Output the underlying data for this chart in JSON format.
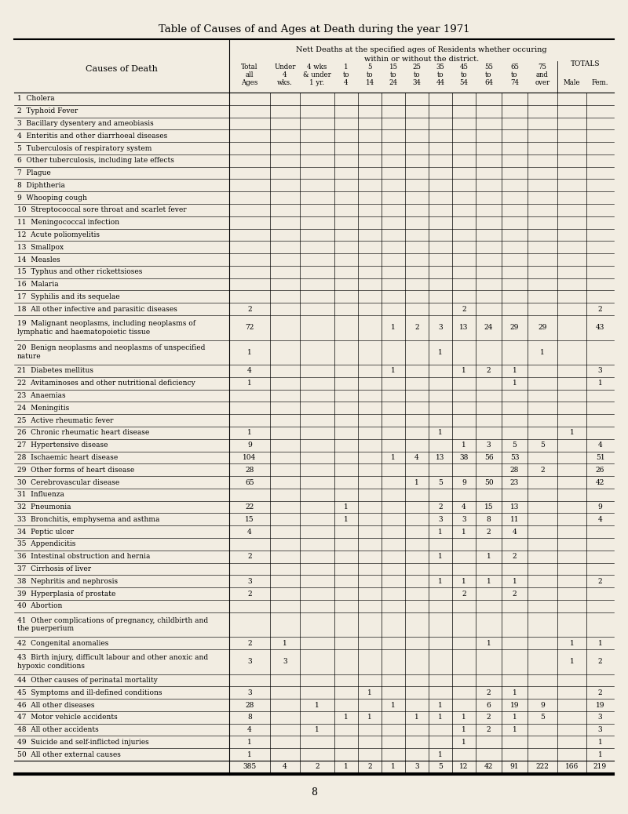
{
  "title": "Table of Causes of and Ages at Death during the year 1971",
  "bg_color": "#f2ede2",
  "causes": [
    [
      "1",
      "Cholera"
    ],
    [
      "2",
      "Typhoid Fever"
    ],
    [
      "3",
      "Bacillary dysentery and ameobiasis"
    ],
    [
      "4",
      "Enteritis and other diarrhoeal diseases"
    ],
    [
      "5",
      "Tuberculosis of respiratory system"
    ],
    [
      "6",
      "Other tuberculosis, including late effects"
    ],
    [
      "7",
      "Plague"
    ],
    [
      "8",
      "Diphtheria"
    ],
    [
      "9",
      "Whooping cough"
    ],
    [
      "10",
      "Streptococcal sore throat and scarlet fever"
    ],
    [
      "11",
      "Meningococcal infection"
    ],
    [
      "12",
      "Acute poliomyelitis"
    ],
    [
      "13",
      "Smallpox"
    ],
    [
      "14",
      "Measles"
    ],
    [
      "15",
      "Typhus and other rickettsioses"
    ],
    [
      "16",
      "Malaria"
    ],
    [
      "17",
      "Syphilis and its sequelae"
    ],
    [
      "18",
      "All other infective and parasitic diseases"
    ],
    [
      "19",
      "Malignant neoplasms, including neoplasms of\nlymphatic and haematopoietic tissue"
    ],
    [
      "20",
      "Benign neoplasms and neoplasms of unspecified\nnature"
    ],
    [
      "21",
      "Diabetes mellitus"
    ],
    [
      "22",
      "Avitaminoses and other nutritional deficiency"
    ],
    [
      "23",
      "Anaemias"
    ],
    [
      "24",
      "Meningitis"
    ],
    [
      "25",
      "Active rheumatic fever"
    ],
    [
      "26",
      "Chronic rheumatic heart disease"
    ],
    [
      "27",
      "Hypertensive disease"
    ],
    [
      "28",
      "Ischaemic heart disease"
    ],
    [
      "29",
      "Other forms of heart disease"
    ],
    [
      "30",
      "Cerebrovascular disease"
    ],
    [
      "31",
      "Influenza"
    ],
    [
      "32",
      "Pneumonia"
    ],
    [
      "33",
      "Bronchitis, emphysema and asthma"
    ],
    [
      "34",
      "Peptic ulcer"
    ],
    [
      "35",
      "Appendicitis"
    ],
    [
      "36",
      "Intestinal obstruction and hernia"
    ],
    [
      "37",
      "Cirrhosis of liver"
    ],
    [
      "38",
      "Nephritis and nephrosis"
    ],
    [
      "39",
      "Hyperplasia of prostate"
    ],
    [
      "40",
      "Abortion"
    ],
    [
      "41",
      "Other complications of pregnancy, childbirth and\nthe puerperium"
    ],
    [
      "42",
      "Congenital anomalies"
    ],
    [
      "43",
      "Birth injury, difficult labour and other anoxic and\nhypoxic conditions"
    ],
    [
      "44",
      "Other causes of perinatal mortality"
    ],
    [
      "45",
      "Symptoms and ill-defined conditions"
    ],
    [
      "46",
      "All other diseases"
    ],
    [
      "47",
      "Motor vehicle accidents"
    ],
    [
      "48",
      "All other accidents"
    ],
    [
      "49",
      "Suicide and self-inflicted injuries"
    ],
    [
      "50",
      "All other external causes"
    ]
  ],
  "data": [
    [
      "",
      "",
      "",
      "",
      "",
      "",
      "",
      "",
      "",
      "",
      "",
      "",
      "",
      ""
    ],
    [
      "",
      "",
      "",
      "",
      "",
      "",
      "",
      "",
      "",
      "",
      "",
      "",
      "",
      ""
    ],
    [
      "",
      "",
      "",
      "",
      "",
      "",
      "",
      "",
      "",
      "",
      "",
      "",
      "",
      ""
    ],
    [
      "",
      "",
      "",
      "",
      "",
      "",
      "",
      "",
      "",
      "",
      "",
      "",
      "",
      ""
    ],
    [
      "",
      "",
      "",
      "",
      "",
      "",
      "",
      "",
      "",
      "",
      "",
      "",
      "",
      ""
    ],
    [
      "",
      "",
      "",
      "",
      "",
      "",
      "",
      "",
      "",
      "",
      "",
      "",
      "",
      ""
    ],
    [
      "",
      "",
      "",
      "",
      "",
      "",
      "",
      "",
      "",
      "",
      "",
      "",
      "",
      ""
    ],
    [
      "",
      "",
      "",
      "",
      "",
      "",
      "",
      "",
      "",
      "",
      "",
      "",
      "",
      ""
    ],
    [
      "",
      "",
      "",
      "",
      "",
      "",
      "",
      "",
      "",
      "",
      "",
      "",
      "",
      ""
    ],
    [
      "",
      "",
      "",
      "",
      "",
      "",
      "",
      "",
      "",
      "",
      "",
      "",
      "",
      ""
    ],
    [
      "",
      "",
      "",
      "",
      "",
      "",
      "",
      "",
      "",
      "",
      "",
      "",
      "",
      ""
    ],
    [
      "",
      "",
      "",
      "",
      "",
      "",
      "",
      "",
      "",
      "",
      "",
      "",
      "",
      ""
    ],
    [
      "",
      "",
      "",
      "",
      "",
      "",
      "",
      "",
      "",
      "",
      "",
      "",
      "",
      ""
    ],
    [
      "",
      "",
      "",
      "",
      "",
      "",
      "",
      "",
      "",
      "",
      "",
      "",
      "",
      ""
    ],
    [
      "",
      "",
      "",
      "",
      "",
      "",
      "",
      "",
      "",
      "",
      "",
      "",
      "",
      ""
    ],
    [
      "",
      "",
      "",
      "",
      "",
      "",
      "",
      "",
      "",
      "",
      "",
      "",
      "",
      ""
    ],
    [
      "",
      "",
      "",
      "",
      "",
      "",
      "",
      "",
      "",
      "",
      "",
      "",
      "",
      ""
    ],
    [
      "2",
      "",
      "",
      "",
      "",
      "",
      "",
      "",
      "2",
      "",
      "",
      "",
      "",
      "2"
    ],
    [
      "72",
      "",
      "",
      "",
      "",
      "1",
      "2",
      "3",
      "13",
      "24",
      "29",
      "29",
      "",
      "43"
    ],
    [
      "1",
      "",
      "",
      "",
      "",
      "",
      "",
      "1",
      "",
      "",
      "",
      "1",
      "",
      ""
    ],
    [
      "4",
      "",
      "",
      "",
      "",
      "1",
      "",
      "",
      "1",
      "2",
      "1",
      "",
      "",
      "3"
    ],
    [
      "1",
      "",
      "",
      "",
      "",
      "",
      "",
      "",
      "",
      "",
      "1",
      "",
      "",
      "1"
    ],
    [
      "",
      "",
      "",
      "",
      "",
      "",
      "",
      "",
      "",
      "",
      "",
      "",
      "",
      ""
    ],
    [
      "",
      "",
      "",
      "",
      "",
      "",
      "",
      "",
      "",
      "",
      "",
      "",
      "",
      ""
    ],
    [
      "",
      "",
      "",
      "",
      "",
      "",
      "",
      "",
      "",
      "",
      "",
      "",
      "",
      ""
    ],
    [
      "1",
      "",
      "",
      "",
      "",
      "",
      "",
      "1",
      "",
      "",
      "",
      "",
      "1",
      ""
    ],
    [
      "9",
      "",
      "",
      "",
      "",
      "",
      "",
      "",
      "1",
      "3",
      "5",
      "5",
      "",
      "4"
    ],
    [
      "104",
      "",
      "",
      "",
      "",
      "1",
      "4",
      "13",
      "38",
      "56",
      "53",
      "",
      "",
      "51"
    ],
    [
      "28",
      "",
      "",
      "",
      "",
      "",
      "",
      "",
      "",
      "",
      "28",
      "2",
      "",
      "26"
    ],
    [
      "65",
      "",
      "",
      "",
      "",
      "",
      "1",
      "5",
      "9",
      "50",
      "23",
      "",
      "",
      "42"
    ],
    [
      "",
      "",
      "",
      "",
      "",
      "",
      "",
      "",
      "",
      "",
      "",
      "",
      "",
      ""
    ],
    [
      "22",
      "",
      "",
      "1",
      "",
      "",
      "",
      "2",
      "4",
      "15",
      "13",
      "",
      "",
      "9"
    ],
    [
      "15",
      "",
      "",
      "1",
      "",
      "",
      "",
      "3",
      "3",
      "8",
      "11",
      "",
      "",
      "4"
    ],
    [
      "4",
      "",
      "",
      "",
      "",
      "",
      "",
      "1",
      "1",
      "2",
      "4",
      "",
      "",
      ""
    ],
    [
      "",
      "",
      "",
      "",
      "",
      "",
      "",
      "",
      "",
      "",
      "",
      "",
      "",
      ""
    ],
    [
      "2",
      "",
      "",
      "",
      "",
      "",
      "",
      "1",
      "",
      "1",
      "2",
      "",
      "",
      ""
    ],
    [
      "",
      "",
      "",
      "",
      "",
      "",
      "",
      "",
      "",
      "",
      "",
      "",
      "",
      ""
    ],
    [
      "3",
      "",
      "",
      "",
      "",
      "",
      "",
      "1",
      "1",
      "1",
      "1",
      "",
      "",
      "2"
    ],
    [
      "2",
      "",
      "",
      "",
      "",
      "",
      "",
      "",
      "2",
      "",
      "2",
      "",
      "",
      ""
    ],
    [
      "",
      "",
      "",
      "",
      "",
      "",
      "",
      "",
      "",
      "",
      "",
      "",
      "",
      ""
    ],
    [
      "",
      "",
      "",
      "",
      "",
      "",
      "",
      "",
      "",
      "",
      "",
      "",
      "",
      ""
    ],
    [
      "2",
      "1",
      "",
      "",
      "",
      "",
      "",
      "",
      "",
      "1",
      "",
      "",
      "1",
      "1"
    ],
    [
      "3",
      "3",
      "",
      "",
      "",
      "",
      "",
      "",
      "",
      "",
      "",
      "",
      "1",
      "2"
    ],
    [
      "",
      "",
      "",
      "",
      "",
      "",
      "",
      "",
      "",
      "",
      "",
      "",
      "",
      ""
    ],
    [
      "3",
      "",
      "",
      "",
      "1",
      "",
      "",
      "",
      "",
      "2",
      "1",
      "",
      "",
      "2"
    ],
    [
      "28",
      "",
      "1",
      "",
      "",
      "1",
      "",
      "1",
      "",
      "6",
      "19",
      "9",
      "",
      "19"
    ],
    [
      "8",
      "",
      "",
      "1",
      "1",
      "",
      "1",
      "1",
      "1",
      "2",
      "1",
      "5",
      "",
      "3"
    ],
    [
      "4",
      "",
      "1",
      "",
      "",
      "",
      "",
      "",
      "1",
      "2",
      "1",
      "",
      "",
      "3"
    ],
    [
      "1",
      "",
      "",
      "",
      "",
      "",
      "",
      "",
      "1",
      "",
      "",
      "",
      "",
      "1"
    ],
    [
      "1",
      "",
      "",
      "",
      "",
      "",
      "",
      "1",
      "",
      "",
      "",
      "",
      "",
      "1"
    ]
  ],
  "totals_row": [
    "385",
    "4",
    "2",
    "1",
    "2",
    "1",
    "3",
    "5",
    "12",
    "42",
    "91",
    "222",
    "166",
    "219"
  ],
  "page_number": "8",
  "double_rows": [
    18,
    19,
    40,
    42
  ]
}
